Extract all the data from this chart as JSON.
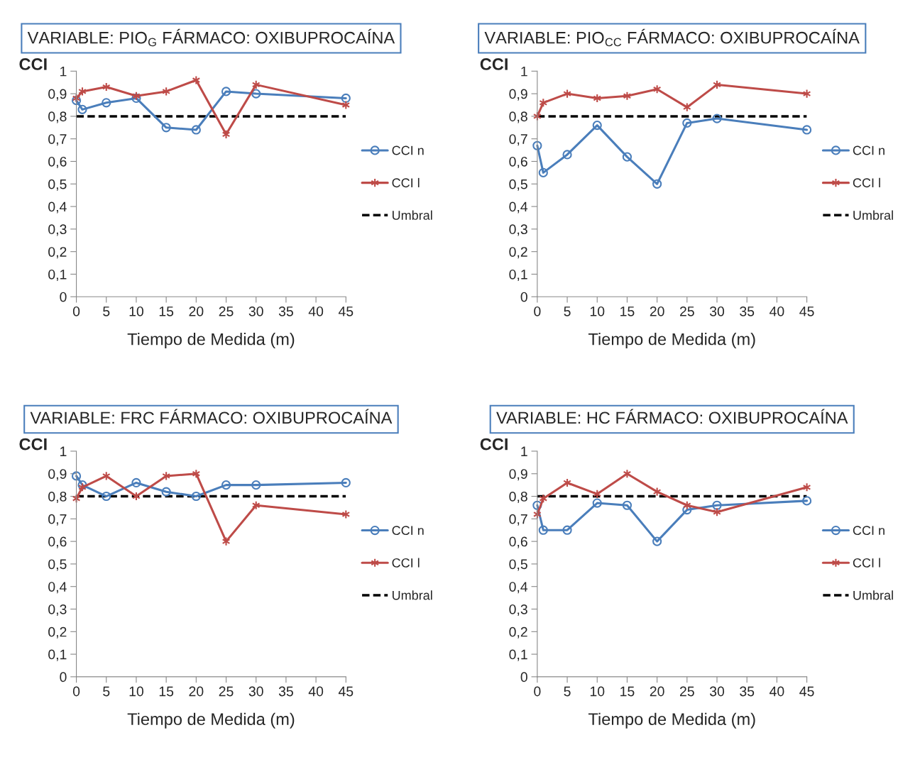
{
  "chart_data": [
    {
      "type": "line",
      "title": "VARIABLE: PIO$_{G}$ FÁRMACO: OXIBUPROCAÍNA",
      "xlabel": "Tiempo de Medida (m)",
      "ylabel": "CCI",
      "x": [
        0,
        1,
        5,
        10,
        15,
        20,
        25,
        30,
        45
      ],
      "series": [
        {
          "name": "CCI n",
          "color": "#4a7ebb",
          "marker": "circle",
          "line_style": "solid",
          "values": [
            0.87,
            0.83,
            0.86,
            0.88,
            0.75,
            0.74,
            0.91,
            0.9,
            0.88
          ]
        },
        {
          "name": "CCI l",
          "color": "#be4b48",
          "marker": "cross",
          "line_style": "solid",
          "values": [
            0.88,
            0.91,
            0.93,
            0.89,
            0.91,
            0.96,
            0.72,
            0.94,
            0.85
          ]
        }
      ],
      "ref_lines": [
        {
          "axis": "y",
          "value": 0.8,
          "label": "Umbral",
          "color": "#000000",
          "line_style": "dashed"
        }
      ],
      "xlim": [
        0,
        45
      ],
      "xticks": [
        0,
        5,
        10,
        15,
        20,
        25,
        30,
        35,
        40,
        45
      ],
      "ylim": [
        0,
        1
      ],
      "yticks": [
        0,
        {
          "value": 0.1,
          "label": "0,1"
        },
        {
          "value": 0.2,
          "label": "0,2"
        },
        {
          "value": 0.3,
          "label": "0,3"
        },
        {
          "value": 0.4,
          "label": "0,4"
        },
        {
          "value": 0.5,
          "label": "0,5"
        },
        {
          "value": 0.6,
          "label": "0,6"
        },
        {
          "value": 0.7,
          "label": "0,7"
        },
        {
          "value": 0.8,
          "label": "0,8"
        },
        {
          "value": 0.9,
          "label": "0,9"
        },
        1
      ],
      "grid": false,
      "legend": "right"
    },
    {
      "type": "line",
      "title": "VARIABLE: PIO$_{CC}$ FÁRMACO: OXIBUPROCAÍNA",
      "xlabel": "Tiempo de Medida (m)",
      "ylabel": "CCI",
      "x": [
        0,
        1,
        5,
        10,
        15,
        20,
        25,
        30,
        45
      ],
      "series": [
        {
          "name": "CCI n",
          "color": "#4a7ebb",
          "marker": "circle",
          "line_style": "solid",
          "values": [
            0.67,
            0.55,
            0.63,
            0.76,
            0.62,
            0.5,
            0.77,
            0.79,
            0.74
          ]
        },
        {
          "name": "CCI l",
          "color": "#be4b48",
          "marker": "cross",
          "line_style": "solid",
          "values": [
            0.8,
            0.86,
            0.9,
            0.88,
            0.89,
            0.92,
            0.84,
            0.94,
            0.9
          ]
        }
      ],
      "ref_lines": [
        {
          "axis": "y",
          "value": 0.8,
          "label": "Umbral",
          "color": "#000000",
          "line_style": "dashed"
        }
      ],
      "xlim": [
        0,
        45
      ],
      "xticks": [
        0,
        5,
        10,
        15,
        20,
        25,
        30,
        35,
        40,
        45
      ],
      "ylim": [
        0,
        1
      ],
      "yticks": [
        0,
        {
          "value": 0.1,
          "label": "0,1"
        },
        {
          "value": 0.2,
          "label": "0,2"
        },
        {
          "value": 0.3,
          "label": "0,3"
        },
        {
          "value": 0.4,
          "label": "0,4"
        },
        {
          "value": 0.5,
          "label": "0,5"
        },
        {
          "value": 0.6,
          "label": "0,6"
        },
        {
          "value": 0.7,
          "label": "0,7"
        },
        {
          "value": 0.8,
          "label": "0,8"
        },
        {
          "value": 0.9,
          "label": "0,9"
        },
        1
      ],
      "grid": false,
      "legend": "right"
    },
    {
      "type": "line",
      "title": "VARIABLE: FRC FÁRMACO: OXIBUPROCAÍNA",
      "xlabel": "Tiempo de Medida (m)",
      "ylabel": "CCI",
      "x": [
        0,
        1,
        5,
        10,
        15,
        20,
        25,
        30,
        45
      ],
      "series": [
        {
          "name": "CCI n",
          "color": "#4a7ebb",
          "marker": "circle",
          "line_style": "solid",
          "values": [
            0.89,
            0.85,
            0.8,
            0.86,
            0.82,
            0.8,
            0.85,
            0.85,
            0.86
          ]
        },
        {
          "name": "CCI l",
          "color": "#be4b48",
          "marker": "cross",
          "line_style": "solid",
          "values": [
            0.79,
            0.84,
            0.89,
            0.8,
            0.89,
            0.9,
            0.6,
            0.76,
            0.72
          ]
        }
      ],
      "ref_lines": [
        {
          "axis": "y",
          "value": 0.8,
          "label": "Umbral",
          "color": "#000000",
          "line_style": "dashed"
        }
      ],
      "xlim": [
        0,
        45
      ],
      "xticks": [
        0,
        5,
        10,
        15,
        20,
        25,
        30,
        35,
        40,
        45
      ],
      "ylim": [
        0,
        1
      ],
      "yticks": [
        0,
        {
          "value": 0.1,
          "label": "0,1"
        },
        {
          "value": 0.2,
          "label": "0,2"
        },
        {
          "value": 0.3,
          "label": "0,3"
        },
        {
          "value": 0.4,
          "label": "0,4"
        },
        {
          "value": 0.5,
          "label": "0,5"
        },
        {
          "value": 0.6,
          "label": "0,6"
        },
        {
          "value": 0.7,
          "label": "0,7"
        },
        {
          "value": 0.8,
          "label": "0,8"
        },
        {
          "value": 0.9,
          "label": "0,9"
        },
        1
      ],
      "grid": false,
      "legend": "right"
    },
    {
      "type": "line",
      "title": "VARIABLE: HC FÁRMACO: OXIBUPROCAÍNA",
      "xlabel": "Tiempo de Medida (m)",
      "ylabel": "CCI",
      "x": [
        0,
        1,
        5,
        10,
        15,
        20,
        25,
        30,
        45
      ],
      "series": [
        {
          "name": "CCI n",
          "color": "#4a7ebb",
          "marker": "circle",
          "line_style": "solid",
          "values": [
            0.76,
            0.65,
            0.65,
            0.77,
            0.76,
            0.6,
            0.74,
            0.76,
            0.78
          ]
        },
        {
          "name": "CCI l",
          "color": "#be4b48",
          "marker": "cross",
          "line_style": "solid",
          "values": [
            0.72,
            0.79,
            0.86,
            0.81,
            0.9,
            0.82,
            0.76,
            0.73,
            0.84
          ]
        }
      ],
      "ref_lines": [
        {
          "axis": "y",
          "value": 0.8,
          "label": "Umbral",
          "color": "#000000",
          "line_style": "dashed"
        }
      ],
      "xlim": [
        0,
        45
      ],
      "xticks": [
        0,
        5,
        10,
        15,
        20,
        25,
        30,
        35,
        40,
        45
      ],
      "ylim": [
        0,
        1
      ],
      "yticks": [
        0,
        {
          "value": 0.1,
          "label": "0,1"
        },
        {
          "value": 0.2,
          "label": "0,2"
        },
        {
          "value": 0.3,
          "label": "0,3"
        },
        {
          "value": 0.4,
          "label": "0,4"
        },
        {
          "value": 0.5,
          "label": "0,5"
        },
        {
          "value": 0.6,
          "label": "0,6"
        },
        {
          "value": 0.7,
          "label": "0,7"
        },
        {
          "value": 0.8,
          "label": "0,8"
        },
        {
          "value": 0.9,
          "label": "0,9"
        },
        1
      ],
      "grid": false,
      "legend": "right"
    }
  ]
}
